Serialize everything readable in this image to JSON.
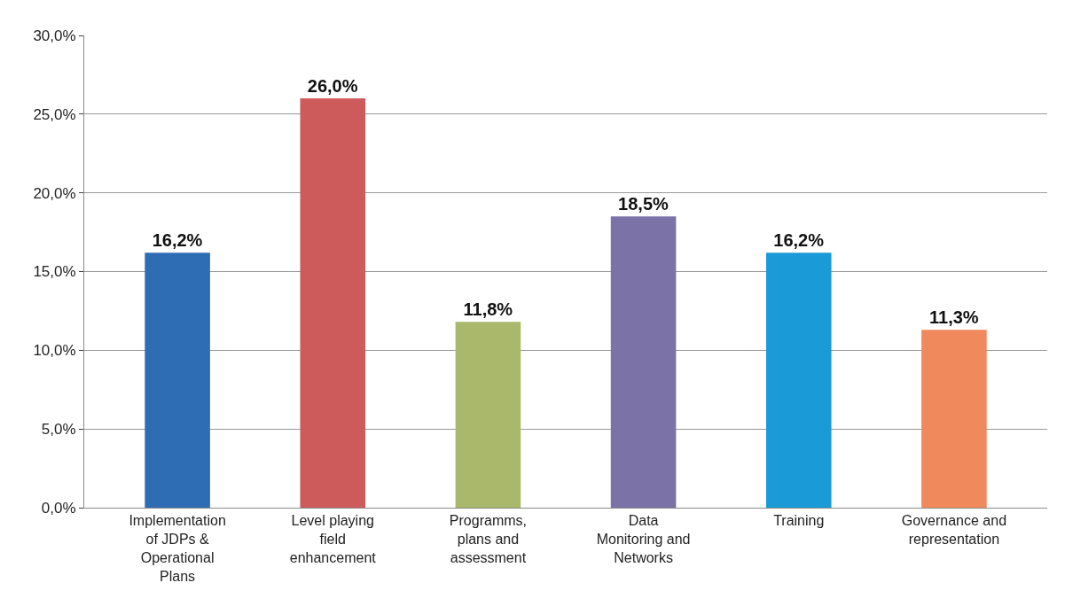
{
  "chart_data": {
    "type": "bar",
    "categories": [
      "Implementation of JDPs & Operational Plans",
      "Level playing field enhancement",
      "Programms, plans and assessment",
      "Data Monitoring and Networks",
      "Training",
      "Governance and representation"
    ],
    "values": [
      16.2,
      26.0,
      11.8,
      18.5,
      16.2,
      11.3
    ],
    "colors": [
      "#2e6db4",
      "#cd5b5b",
      "#a9b86a",
      "#7b72a8",
      "#1a9ad6",
      "#f08a5d"
    ],
    "value_labels": [
      "16,2%",
      "26,0%",
      "11,8%",
      "18,5%",
      "16,2%",
      "11,3%"
    ],
    "ylim": [
      0,
      30
    ],
    "yticks": [
      {
        "value": 0,
        "label": "0,0%"
      },
      {
        "value": 5,
        "label": "5,0%"
      },
      {
        "value": 10,
        "label": "10,0%"
      },
      {
        "value": 15,
        "label": "15,0%"
      },
      {
        "value": 20,
        "label": "20,0%"
      },
      {
        "value": 25,
        "label": "25,0%"
      },
      {
        "value": 30,
        "label": "30,0%"
      }
    ],
    "grid": "y"
  }
}
